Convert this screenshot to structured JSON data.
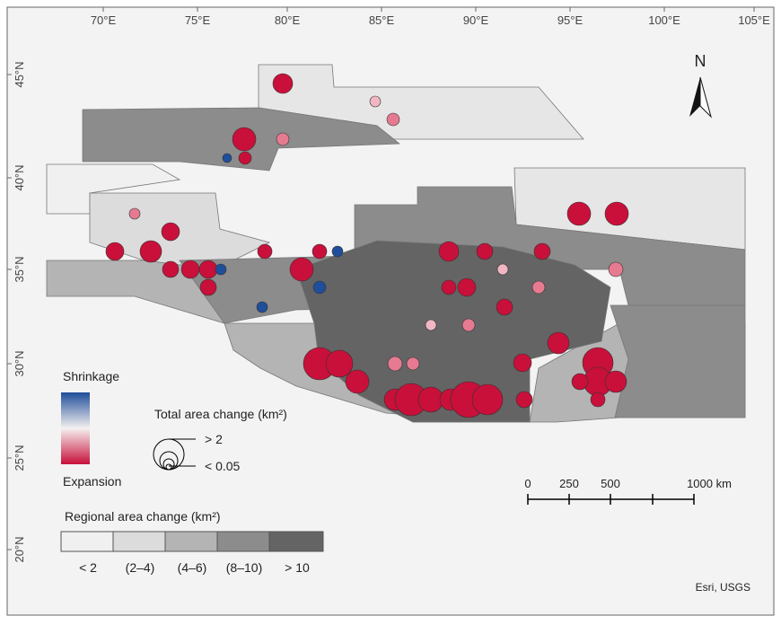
{
  "map": {
    "lon_labels": [
      "70°E",
      "75°E",
      "80°E",
      "85°E",
      "90°E",
      "95°E",
      "100°E",
      "105°E"
    ],
    "lat_labels": [
      "45°N",
      "40°N",
      "35°N",
      "30°N",
      "25°N",
      "20°N"
    ],
    "north": "N",
    "attribution": "Esri, USGS"
  },
  "legend": {
    "color_top": "Shrinkage",
    "color_bottom": "Expansion",
    "size_title": "Total area change (km²)",
    "size_labels": [
      "> 2",
      "< 0.05"
    ],
    "region_title": "Regional area change (km²)",
    "region_classes": [
      "< 2",
      "(2–4)",
      "(4–6)",
      "(8–10)",
      "> 10"
    ]
  },
  "scale_bar": {
    "labels": [
      "0",
      "250",
      "500",
      "1000 km"
    ]
  }
}
